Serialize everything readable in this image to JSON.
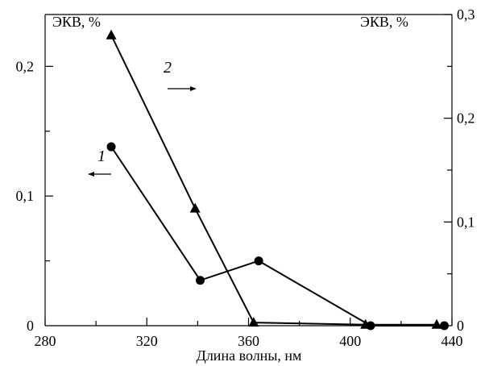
{
  "chart_data": {
    "type": "line",
    "xlabel": "Длина волны, нм",
    "ylabel_left": "ЭКВ, %",
    "ylabel_right": "ЭКВ, %",
    "x_ticks": [
      "280",
      "320",
      "360",
      "400",
      "440"
    ],
    "y_left_ticks": [
      "0",
      "0,1",
      "0,2"
    ],
    "y_right_ticks": [
      "0",
      "0,1",
      "0,2",
      "0,3"
    ],
    "xlim": [
      280,
      440
    ],
    "ylim_left": [
      0,
      0.24
    ],
    "ylim_right": [
      0,
      0.3
    ],
    "grid": false,
    "series": [
      {
        "name": "1",
        "axis": "left",
        "marker": "circle",
        "x": [
          306,
          341,
          364,
          408,
          437
        ],
        "y": [
          0.138,
          0.035,
          0.05,
          0.0,
          0.0
        ]
      },
      {
        "name": "2",
        "axis": "right",
        "marker": "triangle",
        "x": [
          306,
          339,
          362,
          406,
          434
        ],
        "y": [
          0.28,
          0.113,
          0.003,
          0.001,
          0.001
        ]
      }
    ]
  }
}
